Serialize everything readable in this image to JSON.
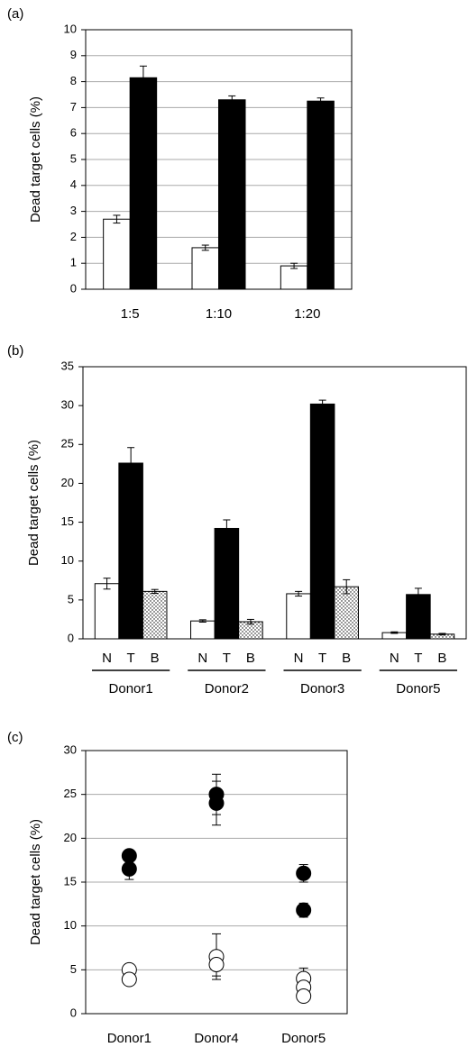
{
  "chart_data": [
    {
      "type": "bar",
      "label": "(a)",
      "y_label": "Dead target cells (%)",
      "categories": [
        "1:5",
        "1:10",
        "1:20"
      ],
      "series": [
        {
          "color": "#ffffff",
          "values": [
            2.7,
            1.6,
            0.9
          ],
          "errors": [
            0.15,
            0.1,
            0.1
          ]
        },
        {
          "color": "#000000",
          "values": [
            8.15,
            7.3,
            7.25
          ],
          "errors": [
            0.45,
            0.15,
            0.12
          ]
        }
      ],
      "ylim": [
        0,
        10
      ],
      "yticks": [
        0,
        1,
        2,
        3,
        4,
        5,
        6,
        7,
        8,
        9,
        10
      ],
      "grid": true
    },
    {
      "type": "bar",
      "label": "(b)",
      "y_label": "Dead target cells (%)",
      "categories": [
        "Donor1",
        "Donor2",
        "Donor3",
        "Donor5"
      ],
      "series": [
        {
          "name": "N",
          "color": "#ffffff",
          "values": [
            7.1,
            2.3,
            5.8,
            0.8
          ],
          "errors": [
            0.7,
            0.15,
            0.3,
            0.1
          ]
        },
        {
          "name": "T",
          "color": "#000000",
          "values": [
            22.6,
            14.2,
            30.2,
            5.7
          ],
          "errors": [
            2.0,
            1.1,
            0.5,
            0.8
          ]
        },
        {
          "name": "B",
          "color": "#ffffff",
          "pattern": "dots",
          "values": [
            6.1,
            2.2,
            6.7,
            0.6
          ],
          "errors": [
            0.25,
            0.3,
            0.9,
            0.1
          ]
        }
      ],
      "ylim": [
        0,
        35
      ],
      "yticks": [
        0,
        5,
        10,
        15,
        20,
        25,
        30,
        35
      ],
      "grid": false
    },
    {
      "type": "scatter",
      "label": "(c)",
      "y_label": "Dead target cells (%)",
      "categories": [
        "Donor1",
        "Donor4",
        "Donor5"
      ],
      "series": [
        {
          "color": "#000000",
          "x": [
            "Donor1",
            "Donor1",
            "Donor4",
            "Donor4",
            "Donor5",
            "Donor5"
          ],
          "values": [
            18.0,
            16.5,
            25.0,
            24.0,
            16.0,
            11.8
          ],
          "errors": [
            null,
            1.2,
            2.3,
            2.5,
            1.0,
            0.8
          ]
        },
        {
          "color": "#ffffff",
          "x": [
            "Donor1",
            "Donor1",
            "Donor4",
            "Donor4",
            "Donor5",
            "Donor5",
            "Donor5"
          ],
          "values": [
            5.0,
            3.9,
            6.5,
            5.6,
            4.0,
            3.0,
            2.0
          ],
          "errors": [
            null,
            null,
            2.6,
            1.3,
            1.2,
            null,
            null
          ]
        }
      ],
      "ylim": [
        0,
        30
      ],
      "yticks": [
        0,
        5,
        10,
        15,
        20,
        25,
        30
      ],
      "grid": true
    }
  ]
}
